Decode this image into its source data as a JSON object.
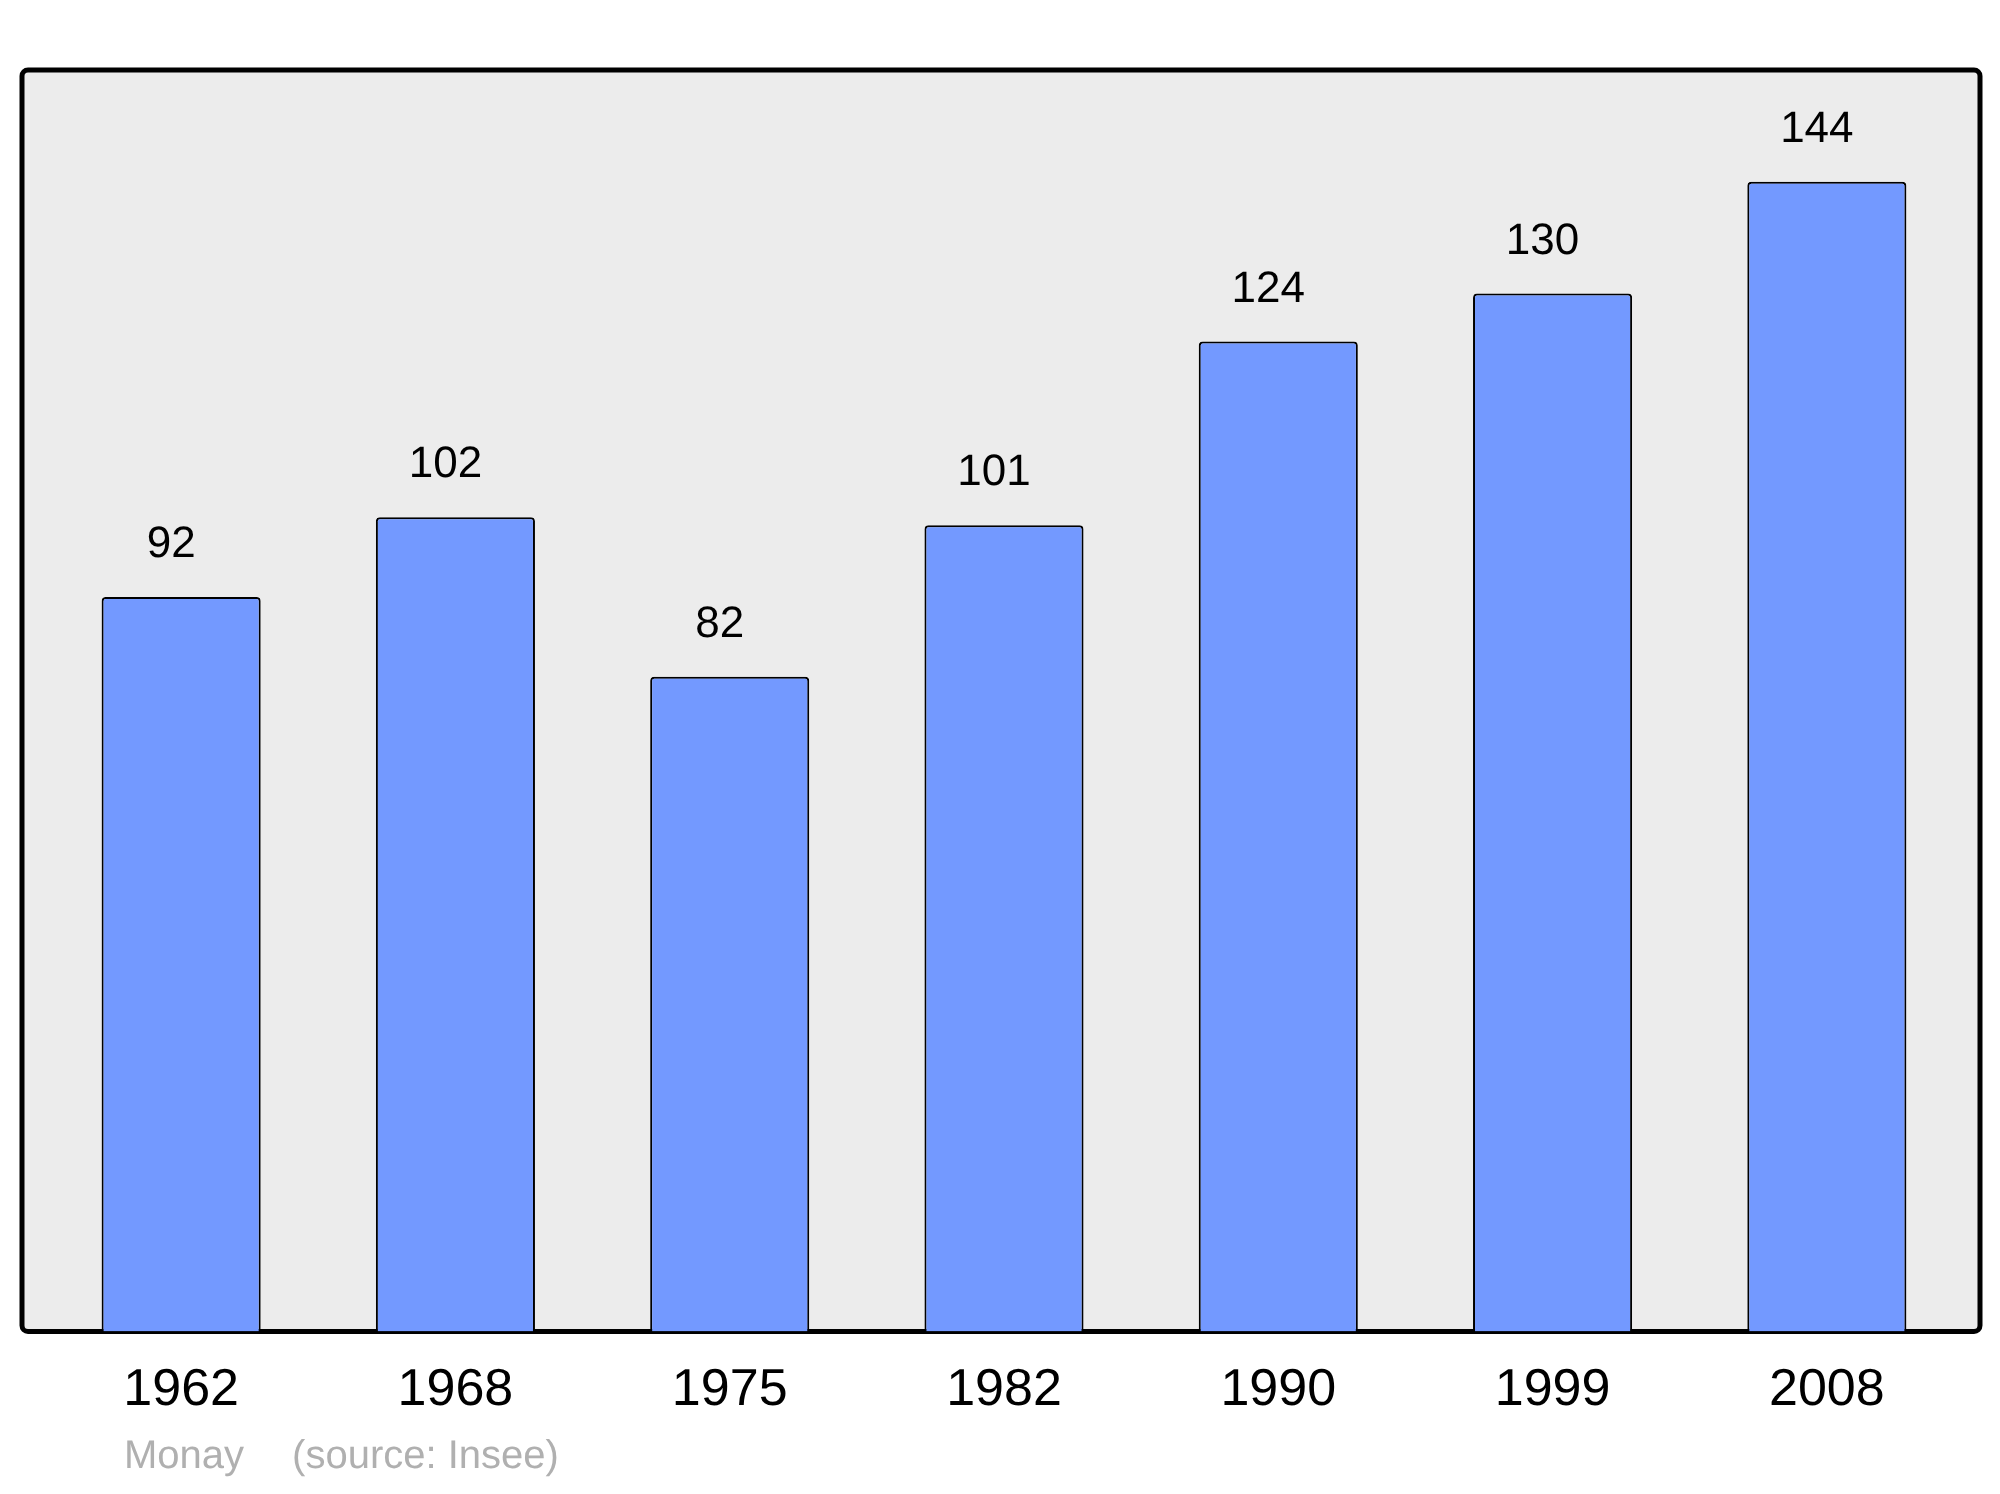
{
  "chart_data": {
    "type": "bar",
    "categories": [
      "1962",
      "1968",
      "1975",
      "1982",
      "1990",
      "1999",
      "2008"
    ],
    "values": [
      92,
      102,
      82,
      101,
      124,
      130,
      144
    ],
    "color": "#7399ff",
    "ylim": [
      0,
      158
    ],
    "data_labels": true,
    "tick_labels": "x",
    "grid": false,
    "legend": false,
    "annotations": [
      "Monay",
      "(source: Insee)"
    ]
  }
}
